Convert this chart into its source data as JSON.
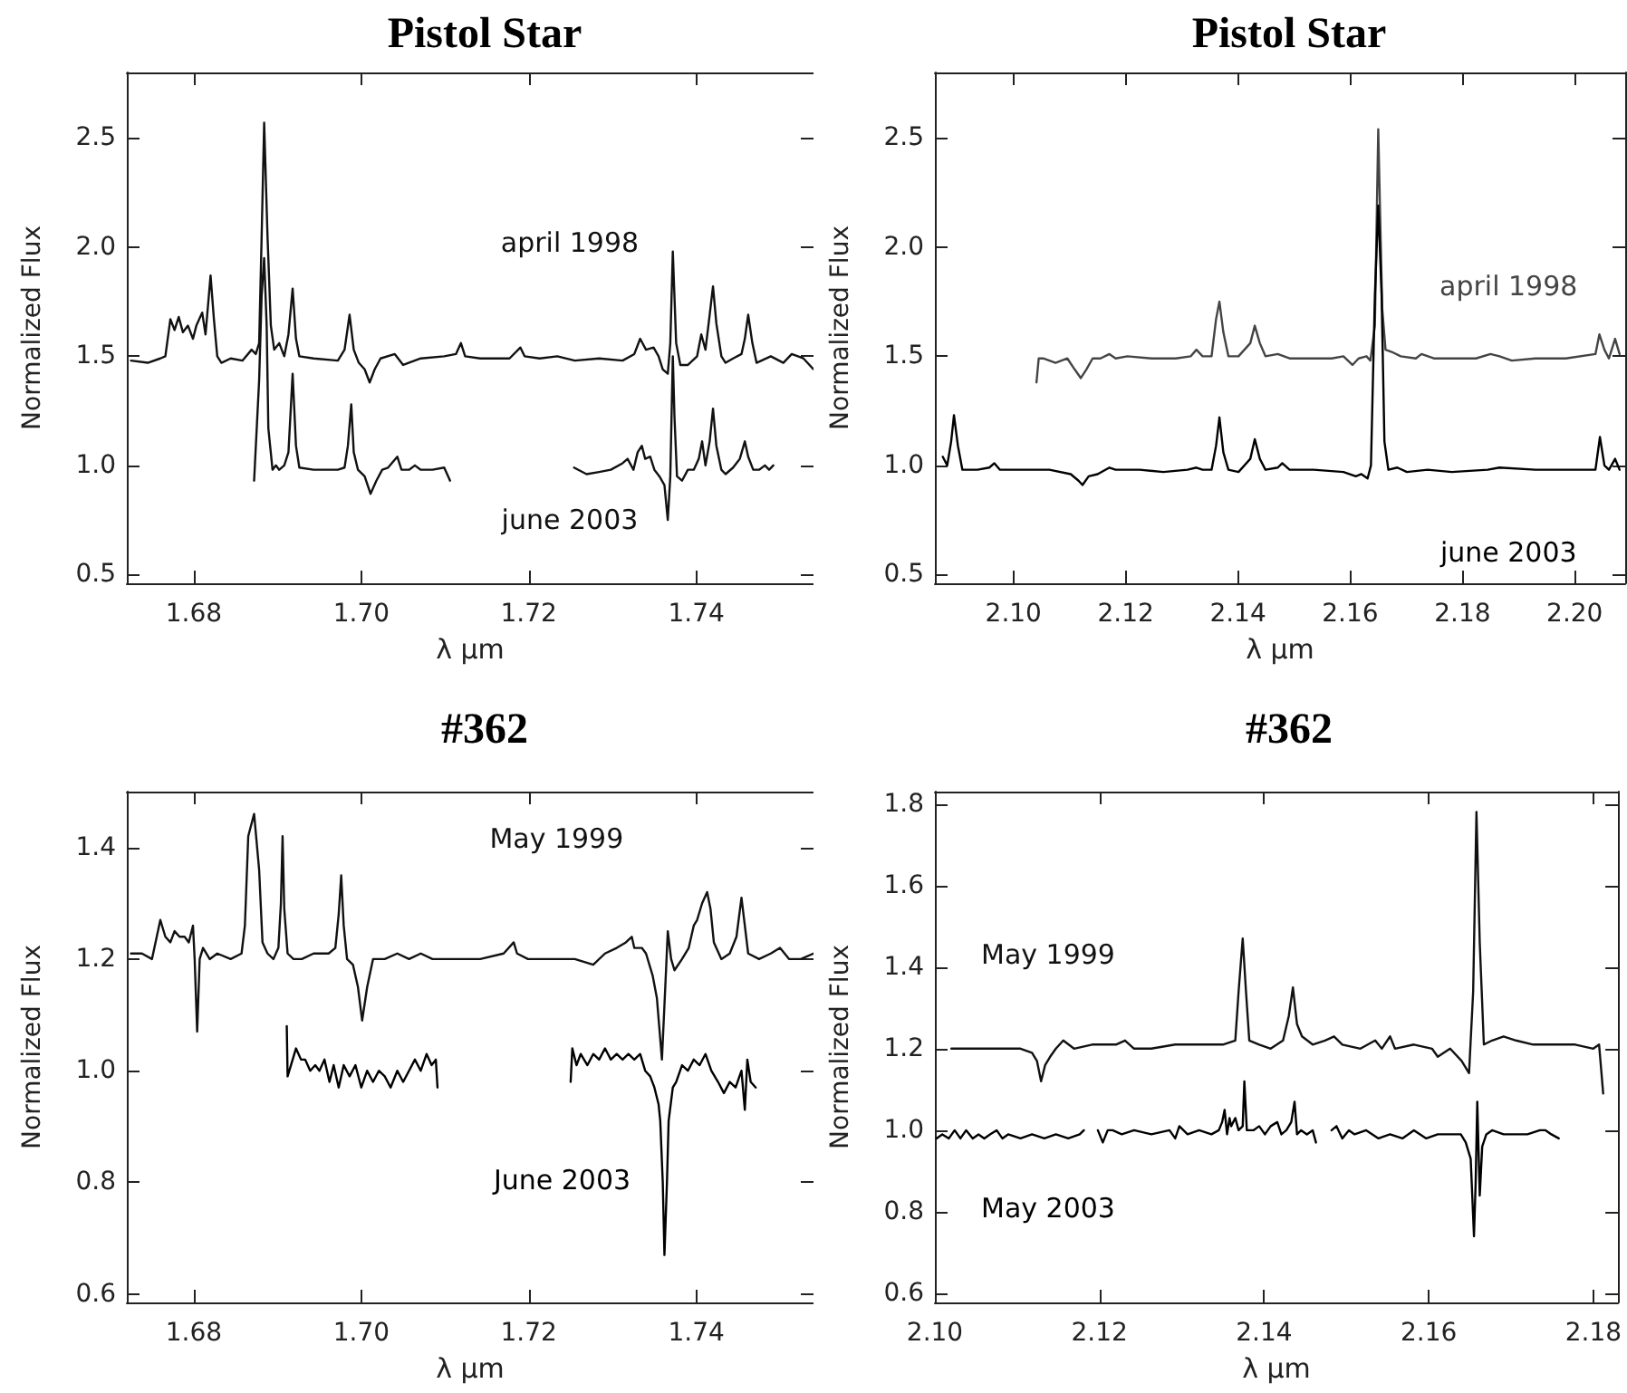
{
  "chart_data": [
    {
      "type": "line",
      "title": "Pistol Star",
      "xlabel": "λ μm",
      "ylabel": "Normalized Flux",
      "marker": "none",
      "xlim": [
        1.672,
        1.754
      ],
      "ylim": [
        0.46,
        2.8
      ],
      "xticks": [
        {
          "value": 1.68,
          "label": "1.68"
        },
        {
          "value": 1.7,
          "label": "1.70"
        },
        {
          "value": 1.72,
          "label": "1.72"
        },
        {
          "value": 1.74,
          "label": "1.74"
        }
      ],
      "yticks": [
        {
          "value": 0.5,
          "label": "0.5"
        },
        {
          "value": 1,
          "label": "1.0"
        },
        {
          "value": 1.5,
          "label": "1.5"
        },
        {
          "value": 2,
          "label": "2.0"
        },
        {
          "value": 2.5,
          "label": "2.5"
        }
      ],
      "series": [
        {
          "name": "april 1998",
          "color": "#111111",
          "x": [
            1.6725,
            1.6745,
            1.676,
            1.6766,
            1.6772,
            1.6777,
            1.6782,
            1.6787,
            1.6793,
            1.6799,
            1.6803,
            1.681,
            1.6814,
            1.682,
            1.6824,
            1.6828,
            1.6833,
            1.6844,
            1.6858,
            1.6869,
            1.6874,
            1.6878,
            1.6881,
            1.6884,
            1.6888,
            1.6892,
            1.6896,
            1.6902,
            1.6908,
            1.6913,
            1.6918,
            1.6922,
            1.6926,
            1.6943,
            1.6972,
            1.698,
            1.6986,
            1.6991,
            1.6997,
            1.7004,
            1.701,
            1.7016,
            1.7023,
            1.704,
            1.705,
            1.7071,
            1.7099,
            1.7113,
            1.7119,
            1.7124,
            1.7142,
            1.7177,
            1.719,
            1.7195,
            1.7213,
            1.7234,
            1.7255,
            1.7284,
            1.7312,
            1.7326,
            1.7333,
            1.734,
            1.7349,
            1.7355,
            1.736,
            1.7366,
            1.7369,
            1.7372,
            1.7376,
            1.7381,
            1.739,
            1.7401,
            1.7406,
            1.7411,
            1.7416,
            1.742,
            1.7424,
            1.743,
            1.7435,
            1.7444,
            1.7454,
            1.7458,
            1.7462,
            1.7467,
            1.7472,
            1.7489,
            1.7504,
            1.7514,
            1.7528,
            1.754
          ],
          "values": [
            1.48,
            1.47,
            1.49,
            1.5,
            1.67,
            1.62,
            1.68,
            1.61,
            1.64,
            1.58,
            1.64,
            1.7,
            1.6,
            1.87,
            1.67,
            1.5,
            1.47,
            1.49,
            1.48,
            1.53,
            1.51,
            1.56,
            2.05,
            2.57,
            2.05,
            1.64,
            1.53,
            1.56,
            1.5,
            1.6,
            1.81,
            1.58,
            1.5,
            1.49,
            1.48,
            1.53,
            1.69,
            1.53,
            1.47,
            1.44,
            1.38,
            1.44,
            1.49,
            1.51,
            1.46,
            1.49,
            1.5,
            1.51,
            1.56,
            1.5,
            1.49,
            1.49,
            1.54,
            1.5,
            1.49,
            1.5,
            1.48,
            1.49,
            1.48,
            1.51,
            1.58,
            1.53,
            1.54,
            1.5,
            1.44,
            1.42,
            1.56,
            1.98,
            1.56,
            1.46,
            1.46,
            1.5,
            1.6,
            1.53,
            1.69,
            1.82,
            1.65,
            1.5,
            1.47,
            1.49,
            1.51,
            1.58,
            1.69,
            1.56,
            1.47,
            1.5,
            1.47,
            1.51,
            1.49,
            1.44
          ]
        },
        {
          "name": "june 2003",
          "color": "#111111",
          "x": [
            1.6872,
            1.6878,
            1.6881,
            1.6884,
            1.6887,
            1.6889,
            1.6894,
            1.6898,
            1.6902,
            1.6908,
            1.6913,
            1.6918,
            1.6922,
            1.6926,
            1.6943,
            1.6972,
            1.698,
            1.6984,
            1.6988,
            1.6991,
            1.6996,
            1.7004,
            1.7011,
            1.7018,
            1.7025,
            1.7032,
            1.7043,
            1.7048,
            1.7057,
            1.7064,
            1.7071,
            1.7085,
            1.7099,
            1.7106,
            1.718,
            1.7254,
            1.7269,
            1.7284,
            1.7298,
            1.7312,
            1.7318,
            1.7325,
            1.733,
            1.7335,
            1.7339,
            1.7345,
            1.735,
            1.7356,
            1.7362,
            1.7366,
            1.7369,
            1.7372,
            1.7374,
            1.7377,
            1.7383,
            1.739,
            1.7397,
            1.7403,
            1.7407,
            1.7411,
            1.7416,
            1.742,
            1.7424,
            1.743,
            1.7435,
            1.7444,
            1.7452,
            1.7458,
            1.7462,
            1.7468,
            1.7475,
            1.7482,
            1.7487,
            1.7492
          ],
          "values": [
            0.93,
            1.39,
            1.78,
            1.95,
            1.64,
            1.17,
            0.98,
            1.0,
            0.98,
            1.0,
            1.06,
            1.42,
            1.09,
            0.99,
            0.98,
            0.98,
            0.99,
            1.09,
            1.28,
            1.06,
            0.98,
            0.95,
            0.87,
            0.93,
            0.98,
            0.99,
            1.04,
            0.98,
            0.98,
            1.0,
            0.98,
            0.98,
            0.99,
            0.93,
            null,
            0.99,
            0.96,
            0.97,
            0.98,
            1.01,
            1.03,
            0.98,
            1.06,
            1.09,
            1.03,
            1.04,
            0.98,
            0.95,
            0.91,
            0.75,
            0.95,
            1.5,
            1.22,
            0.95,
            0.93,
            0.98,
            0.98,
            1.03,
            1.11,
            1.0,
            1.11,
            1.26,
            1.09,
            0.98,
            0.96,
            0.99,
            1.03,
            1.11,
            1.04,
            0.98,
            0.98,
            1.0,
            0.98,
            1.0
          ]
        }
      ]
    },
    {
      "type": "line",
      "title": "Pistol Star",
      "xlabel": "λ μm",
      "ylabel": "Normalized Flux",
      "marker": "none",
      "xlim": [
        2.086,
        2.209
      ],
      "ylim": [
        0.46,
        2.8
      ],
      "xticks": [
        {
          "value": 2.1,
          "label": "2.10"
        },
        {
          "value": 2.12,
          "label": "2.12"
        },
        {
          "value": 2.14,
          "label": "2.14"
        },
        {
          "value": 2.16,
          "label": "2.16"
        },
        {
          "value": 2.18,
          "label": "2.18"
        },
        {
          "value": 2.2,
          "label": "2.20"
        }
      ],
      "yticks": [
        {
          "value": 0.5,
          "label": "0.5"
        },
        {
          "value": 1,
          "label": "1.0"
        },
        {
          "value": 1.5,
          "label": "1.5"
        },
        {
          "value": 2,
          "label": "2.0"
        },
        {
          "value": 2.5,
          "label": "2.5"
        }
      ],
      "series": [
        {
          "name": "april 1998",
          "color": "#444444",
          "x": [
            2.1041,
            2.1045,
            2.1053,
            2.1075,
            2.1096,
            2.1109,
            2.112,
            2.113,
            2.1141,
            2.1155,
            2.1171,
            2.1182,
            2.1203,
            2.1246,
            2.1289,
            2.1316,
            2.1326,
            2.1337,
            2.1353,
            2.1361,
            2.1367,
            2.1374,
            2.1383,
            2.1401,
            2.1422,
            2.143,
            2.1439,
            2.1449,
            2.1471,
            2.1492,
            2.1535,
            2.1567,
            2.1588,
            2.1604,
            2.1615,
            2.1629,
            2.1636,
            2.1644,
            2.165,
            2.1657,
            2.1663,
            2.1674,
            2.169,
            2.1717,
            2.1727,
            2.1749,
            2.1781,
            2.1824,
            2.185,
            2.1866,
            2.1888,
            2.193,
            2.1984,
            2.2037,
            2.2044,
            2.2053,
            2.2061,
            2.2072,
            2.208
          ],
          "values": [
            1.38,
            1.49,
            1.49,
            1.47,
            1.49,
            1.44,
            1.4,
            1.44,
            1.49,
            1.49,
            1.51,
            1.49,
            1.5,
            1.49,
            1.49,
            1.5,
            1.53,
            1.5,
            1.5,
            1.67,
            1.75,
            1.61,
            1.5,
            1.5,
            1.56,
            1.64,
            1.56,
            1.5,
            1.51,
            1.49,
            1.49,
            1.49,
            1.5,
            1.46,
            1.49,
            1.5,
            1.48,
            1.64,
            2.54,
            1.72,
            1.53,
            1.52,
            1.5,
            1.49,
            1.51,
            1.49,
            1.49,
            1.49,
            1.51,
            1.5,
            1.48,
            1.49,
            1.49,
            1.51,
            1.6,
            1.53,
            1.49,
            1.58,
            1.51
          ]
        },
        {
          "name": "june 2003",
          "color": "#000000",
          "x": [
            2.0874,
            2.0882,
            2.0889,
            2.0894,
            2.0901,
            2.0909,
            2.0936,
            2.0957,
            2.0966,
            2.0976,
            2.1011,
            2.1064,
            2.1102,
            2.1116,
            2.1123,
            2.1134,
            2.115,
            2.1171,
            2.1182,
            2.1225,
            2.1267,
            2.131,
            2.1326,
            2.1337,
            2.1353,
            2.1361,
            2.1367,
            2.1374,
            2.1383,
            2.1401,
            2.1422,
            2.143,
            2.1439,
            2.1449,
            2.1471,
            2.1479,
            2.1492,
            2.1535,
            2.1588,
            2.161,
            2.162,
            2.1631,
            2.1637,
            2.1644,
            2.165,
            2.1656,
            2.1661,
            2.1668,
            2.1684,
            2.1701,
            2.1738,
            2.1781,
            2.1845,
            2.1866,
            2.193,
            2.1995,
            2.2037,
            2.2045,
            2.2053,
            2.2061,
            2.2072,
            2.208
          ],
          "values": [
            1.04,
            1.0,
            1.11,
            1.23,
            1.09,
            0.98,
            0.98,
            0.99,
            1.01,
            0.98,
            0.98,
            0.98,
            0.96,
            0.93,
            0.91,
            0.95,
            0.96,
            0.99,
            0.98,
            0.98,
            0.97,
            0.98,
            0.99,
            0.98,
            0.98,
            1.09,
            1.22,
            1.06,
            0.98,
            0.97,
            1.03,
            1.12,
            1.03,
            0.98,
            0.99,
            1.01,
            0.98,
            0.98,
            0.97,
            0.95,
            0.96,
            0.94,
            1.0,
            1.78,
            2.19,
            1.78,
            1.11,
            0.98,
            0.99,
            0.97,
            0.98,
            0.97,
            0.98,
            0.99,
            0.98,
            0.98,
            0.98,
            1.13,
            1.0,
            0.98,
            1.03,
            0.98
          ]
        }
      ]
    },
    {
      "type": "line",
      "title": "#362",
      "xlabel": "λ μm",
      "ylabel": "Normalized Flux",
      "marker": "none",
      "xlim": [
        1.672,
        1.754
      ],
      "ylim": [
        0.585,
        1.5
      ],
      "xticks": [
        {
          "value": 1.68,
          "label": "1.68"
        },
        {
          "value": 1.7,
          "label": "1.70"
        },
        {
          "value": 1.72,
          "label": "1.72"
        },
        {
          "value": 1.74,
          "label": "1.74"
        }
      ],
      "yticks": [
        {
          "value": 0.6,
          "label": "0.6"
        },
        {
          "value": 0.8,
          "label": "0.8"
        },
        {
          "value": 1,
          "label": "1.0"
        },
        {
          "value": 1.2,
          "label": "1.2"
        },
        {
          "value": 1.4,
          "label": "1.4"
        }
      ],
      "series": [
        {
          "name": "May 1999",
          "color": "#111111",
          "x": [
            1.6725,
            1.6738,
            1.675,
            1.676,
            1.6766,
            1.6772,
            1.6777,
            1.6783,
            1.6789,
            1.6794,
            1.6799,
            1.6801,
            1.6804,
            1.6807,
            1.6811,
            1.6819,
            1.6828,
            1.6844,
            1.6857,
            1.6861,
            1.6865,
            1.6872,
            1.6878,
            1.6882,
            1.6888,
            1.6895,
            1.6901,
            1.6904,
            1.6906,
            1.6908,
            1.6912,
            1.6919,
            1.6929,
            1.6943,
            1.695,
            1.6961,
            1.6969,
            1.6973,
            1.6976,
            1.6979,
            1.6983,
            1.699,
            1.6996,
            1.7001,
            1.7007,
            1.7014,
            1.7028,
            1.7043,
            1.7057,
            1.7071,
            1.7085,
            1.7113,
            1.7142,
            1.717,
            1.7182,
            1.7186,
            1.7199,
            1.7227,
            1.7255,
            1.7277,
            1.7291,
            1.7305,
            1.7316,
            1.7323,
            1.7326,
            1.7335,
            1.734,
            1.7348,
            1.7353,
            1.7359,
            1.7363,
            1.7366,
            1.737,
            1.7374,
            1.7383,
            1.7391,
            1.7397,
            1.7401,
            1.7407,
            1.7413,
            1.7417,
            1.7421,
            1.743,
            1.744,
            1.7448,
            1.7454,
            1.7458,
            1.7462,
            1.7475,
            1.7489,
            1.75,
            1.7511,
            1.7525,
            1.754
          ],
          "values": [
            1.21,
            1.21,
            1.2,
            1.27,
            1.24,
            1.23,
            1.25,
            1.24,
            1.24,
            1.23,
            1.26,
            1.2,
            1.07,
            1.2,
            1.22,
            1.2,
            1.21,
            1.2,
            1.21,
            1.26,
            1.42,
            1.46,
            1.36,
            1.23,
            1.21,
            1.2,
            1.22,
            1.3,
            1.42,
            1.29,
            1.21,
            1.2,
            1.2,
            1.21,
            1.21,
            1.21,
            1.22,
            1.28,
            1.35,
            1.26,
            1.2,
            1.19,
            1.15,
            1.09,
            1.15,
            1.2,
            1.2,
            1.21,
            1.2,
            1.21,
            1.2,
            1.2,
            1.2,
            1.21,
            1.23,
            1.21,
            1.2,
            1.2,
            1.2,
            1.19,
            1.21,
            1.22,
            1.23,
            1.24,
            1.22,
            1.22,
            1.21,
            1.17,
            1.13,
            1.02,
            1.15,
            1.25,
            1.2,
            1.18,
            1.2,
            1.22,
            1.26,
            1.27,
            1.3,
            1.32,
            1.29,
            1.23,
            1.2,
            1.21,
            1.24,
            1.31,
            1.26,
            1.21,
            1.2,
            1.21,
            1.22,
            1.2,
            1.2,
            1.21
          ]
        },
        {
          "name": "June 2003",
          "color": "#000000",
          "x": [
            1.6911,
            1.6912,
            1.6916,
            1.6922,
            1.6928,
            1.6933,
            1.6939,
            1.6945,
            1.695,
            1.6956,
            1.6962,
            1.6967,
            1.6973,
            1.6979,
            1.6986,
            1.6993,
            1.7,
            1.7007,
            1.7014,
            1.7021,
            1.7028,
            1.7035,
            1.7043,
            1.705,
            1.7057,
            1.7064,
            1.7071,
            1.7078,
            1.7084,
            1.7089,
            1.7091,
            1.718,
            1.725,
            1.7252,
            1.7257,
            1.7262,
            1.727,
            1.7277,
            1.7284,
            1.7291,
            1.7298,
            1.7305,
            1.7312,
            1.7319,
            1.7326,
            1.7333,
            1.7339,
            1.7345,
            1.735,
            1.7355,
            1.7357,
            1.736,
            1.7362,
            1.7365,
            1.7367,
            1.7372,
            1.7376,
            1.7383,
            1.739,
            1.7397,
            1.7404,
            1.7411,
            1.7418,
            1.7426,
            1.7433,
            1.744,
            1.7447,
            1.7454,
            1.7458,
            1.7461,
            1.7465,
            1.7471
          ],
          "values": [
            1.08,
            0.99,
            1.01,
            1.04,
            1.02,
            1.02,
            1.0,
            1.01,
            1.0,
            1.02,
            0.98,
            1.01,
            0.97,
            1.01,
            0.99,
            1.01,
            0.97,
            1.0,
            0.98,
            1.0,
            0.99,
            0.97,
            1.0,
            0.98,
            1.0,
            1.02,
            1.0,
            1.03,
            1.01,
            1.02,
            0.97,
            null,
            0.98,
            1.04,
            1.01,
            1.03,
            1.01,
            1.03,
            1.02,
            1.04,
            1.02,
            1.03,
            1.02,
            1.03,
            1.02,
            1.03,
            1.0,
            0.99,
            0.97,
            0.94,
            0.91,
            0.8,
            0.67,
            0.8,
            0.91,
            0.97,
            0.98,
            1.01,
            1.0,
            1.02,
            1.01,
            1.03,
            1.0,
            0.98,
            0.96,
            0.98,
            0.97,
            1.0,
            0.93,
            1.02,
            0.98,
            0.97
          ]
        }
      ]
    },
    {
      "type": "line",
      "title": "#362",
      "xlabel": "λ μm",
      "ylabel": "Normalized Flux",
      "marker": "none",
      "xlim": [
        2.1,
        2.183
      ],
      "ylim": [
        0.578,
        1.83
      ],
      "xticks": [
        {
          "value": 2.1,
          "label": "2.10"
        },
        {
          "value": 2.12,
          "label": "2.12"
        },
        {
          "value": 2.14,
          "label": "2.14"
        },
        {
          "value": 2.16,
          "label": "2.16"
        },
        {
          "value": 2.18,
          "label": "2.18"
        }
      ],
      "yticks": [
        {
          "value": 0.6,
          "label": "0.6"
        },
        {
          "value": 0.8,
          "label": "0.8"
        },
        {
          "value": 1,
          "label": "1.0"
        },
        {
          "value": 1.2,
          "label": "1.2"
        },
        {
          "value": 1.4,
          "label": "1.4"
        },
        {
          "value": 1.6,
          "label": "1.6"
        },
        {
          "value": 1.8,
          "label": "1.8"
        }
      ],
      "series": [
        {
          "name": "May 1999",
          "color": "#111111",
          "x": [
            2.102,
            2.1038,
            2.106,
            2.1082,
            2.1104,
            2.1118,
            2.1124,
            2.1129,
            2.1134,
            2.114,
            2.1147,
            2.1156,
            2.1169,
            2.1191,
            2.122,
            2.1231,
            2.1242,
            2.1263,
            2.1292,
            2.1329,
            2.135,
            2.1365,
            2.1369,
            2.1374,
            2.1378,
            2.1382,
            2.1394,
            2.1408,
            2.1423,
            2.143,
            2.1435,
            2.144,
            2.1446,
            2.1459,
            2.1474,
            2.1485,
            2.1495,
            2.1517,
            2.1535,
            2.1543,
            2.1553,
            2.1559,
            2.1582,
            2.1604,
            2.1611,
            2.1626,
            2.164,
            2.1649,
            2.1654,
            2.1658,
            2.1662,
            2.1667,
            2.1677,
            2.1691,
            2.1706,
            2.1727,
            2.1757,
            2.1778,
            2.18,
            2.1807,
            2.1812
          ],
          "values": [
            1.2,
            1.2,
            1.2,
            1.2,
            1.2,
            1.19,
            1.17,
            1.12,
            1.16,
            1.18,
            1.2,
            1.22,
            1.2,
            1.21,
            1.21,
            1.22,
            1.2,
            1.2,
            1.21,
            1.21,
            1.21,
            1.22,
            1.34,
            1.47,
            1.34,
            1.22,
            1.21,
            1.2,
            1.22,
            1.28,
            1.35,
            1.26,
            1.23,
            1.21,
            1.22,
            1.23,
            1.21,
            1.2,
            1.22,
            1.2,
            1.23,
            1.2,
            1.21,
            1.2,
            1.18,
            1.2,
            1.17,
            1.14,
            1.34,
            1.78,
            1.46,
            1.21,
            1.22,
            1.23,
            1.22,
            1.21,
            1.21,
            1.21,
            1.2,
            1.21,
            1.09
          ]
        },
        {
          "name": "May 2003",
          "color": "#000000",
          "x": [
            2.1002,
            2.1009,
            2.1017,
            2.1024,
            2.1031,
            2.1038,
            2.1046,
            2.1053,
            2.106,
            2.1067,
            2.1075,
            2.1082,
            2.1089,
            2.1104,
            2.1118,
            2.1133,
            2.1147,
            2.1162,
            2.1176,
            2.1181,
            2.1192,
            2.1198,
            2.1204,
            2.121,
            2.1216,
            2.1227,
            2.1242,
            2.1263,
            2.1285,
            2.1292,
            2.1297,
            2.1307,
            2.1321,
            2.1336,
            2.1345,
            2.1349,
            2.1352,
            2.1355,
            2.1358,
            2.136,
            2.1365,
            2.1369,
            2.1374,
            2.1376,
            2.1379,
            2.1387,
            2.1394,
            2.1401,
            2.1408,
            2.1416,
            2.1421,
            2.1427,
            2.1433,
            2.1437,
            2.144,
            2.1445,
            2.1452,
            2.1459,
            2.1463,
            2.1472,
            2.1482,
            2.1488,
            2.1495,
            2.1503,
            2.151,
            2.1524,
            2.1539,
            2.1553,
            2.1568,
            2.1582,
            2.1597,
            2.1611,
            2.1626,
            2.1639,
            2.1645,
            2.1651,
            2.1655,
            2.1657,
            2.1659,
            2.1662,
            2.1665,
            2.167,
            2.1677,
            2.1691,
            2.1706,
            2.172,
            2.1735,
            2.1742,
            2.1749,
            2.1758
          ],
          "values": [
            0.98,
            0.99,
            0.98,
            1.0,
            0.98,
            1.0,
            0.98,
            0.99,
            0.98,
            0.99,
            1.0,
            0.98,
            0.99,
            0.98,
            0.99,
            0.98,
            0.99,
            0.98,
            0.99,
            1.0,
            null,
            1.0,
            0.97,
            1.0,
            1.0,
            0.99,
            1.0,
            0.99,
            1.0,
            0.98,
            1.01,
            0.99,
            1.0,
            0.99,
            1.0,
            1.02,
            1.05,
            0.99,
            1.03,
            1.01,
            1.03,
            1.0,
            1.01,
            1.12,
            1.0,
            1.0,
            1.01,
            0.99,
            1.01,
            1.02,
            0.99,
            1.0,
            1.02,
            1.07,
            0.99,
            1.0,
            0.99,
            1.0,
            0.97,
            null,
            1.0,
            1.01,
            0.98,
            1.0,
            0.99,
            1.0,
            0.98,
            0.99,
            0.98,
            1.0,
            0.98,
            0.99,
            0.99,
            0.99,
            0.97,
            0.93,
            0.74,
            0.87,
            1.07,
            0.84,
            0.96,
            0.99,
            1.0,
            0.99,
            0.99,
            0.99,
            1.0,
            1.0,
            0.99,
            0.98
          ]
        }
      ]
    }
  ]
}
